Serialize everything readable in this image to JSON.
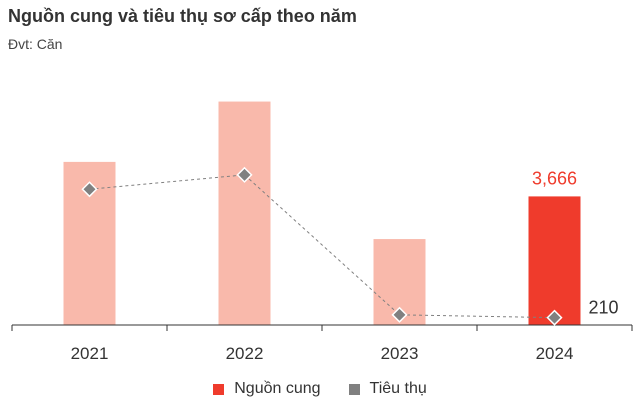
{
  "title": "Nguồn cung và tiêu thụ sơ cấp theo năm",
  "subtitle": "Đvt: Căn",
  "colors": {
    "bar": "#f9b9ab",
    "bar_highlight": "#ef3b2c",
    "marker": "#808080",
    "line": "#808080",
    "axis": "#333333",
    "label_highlight": "#ef3b2c",
    "label_default": "#333333"
  },
  "chart_data": {
    "type": "bar",
    "categories": [
      "2021",
      "2022",
      "2023",
      "2024"
    ],
    "series": [
      {
        "name": "Nguồn cung",
        "type": "bar",
        "values": [
          4650,
          6370,
          2450,
          3666
        ]
      },
      {
        "name": "Tiêu thụ",
        "type": "line",
        "values": [
          3870,
          4280,
          290,
          210
        ]
      }
    ],
    "data_labels": [
      {
        "series": "Nguồn cung",
        "category": "2024",
        "text": "3,666"
      },
      {
        "series": "Tiêu thụ",
        "category": "2024",
        "text": "210"
      }
    ],
    "highlight_category": "2024",
    "ylim": [
      0,
      6500
    ],
    "grid": false,
    "legend_position": "bottom"
  },
  "legend": [
    {
      "label": "Nguồn cung",
      "color": "#ef3b2c",
      "shape": "square"
    },
    {
      "label": "Tiêu thụ",
      "color": "#808080",
      "shape": "square"
    }
  ]
}
